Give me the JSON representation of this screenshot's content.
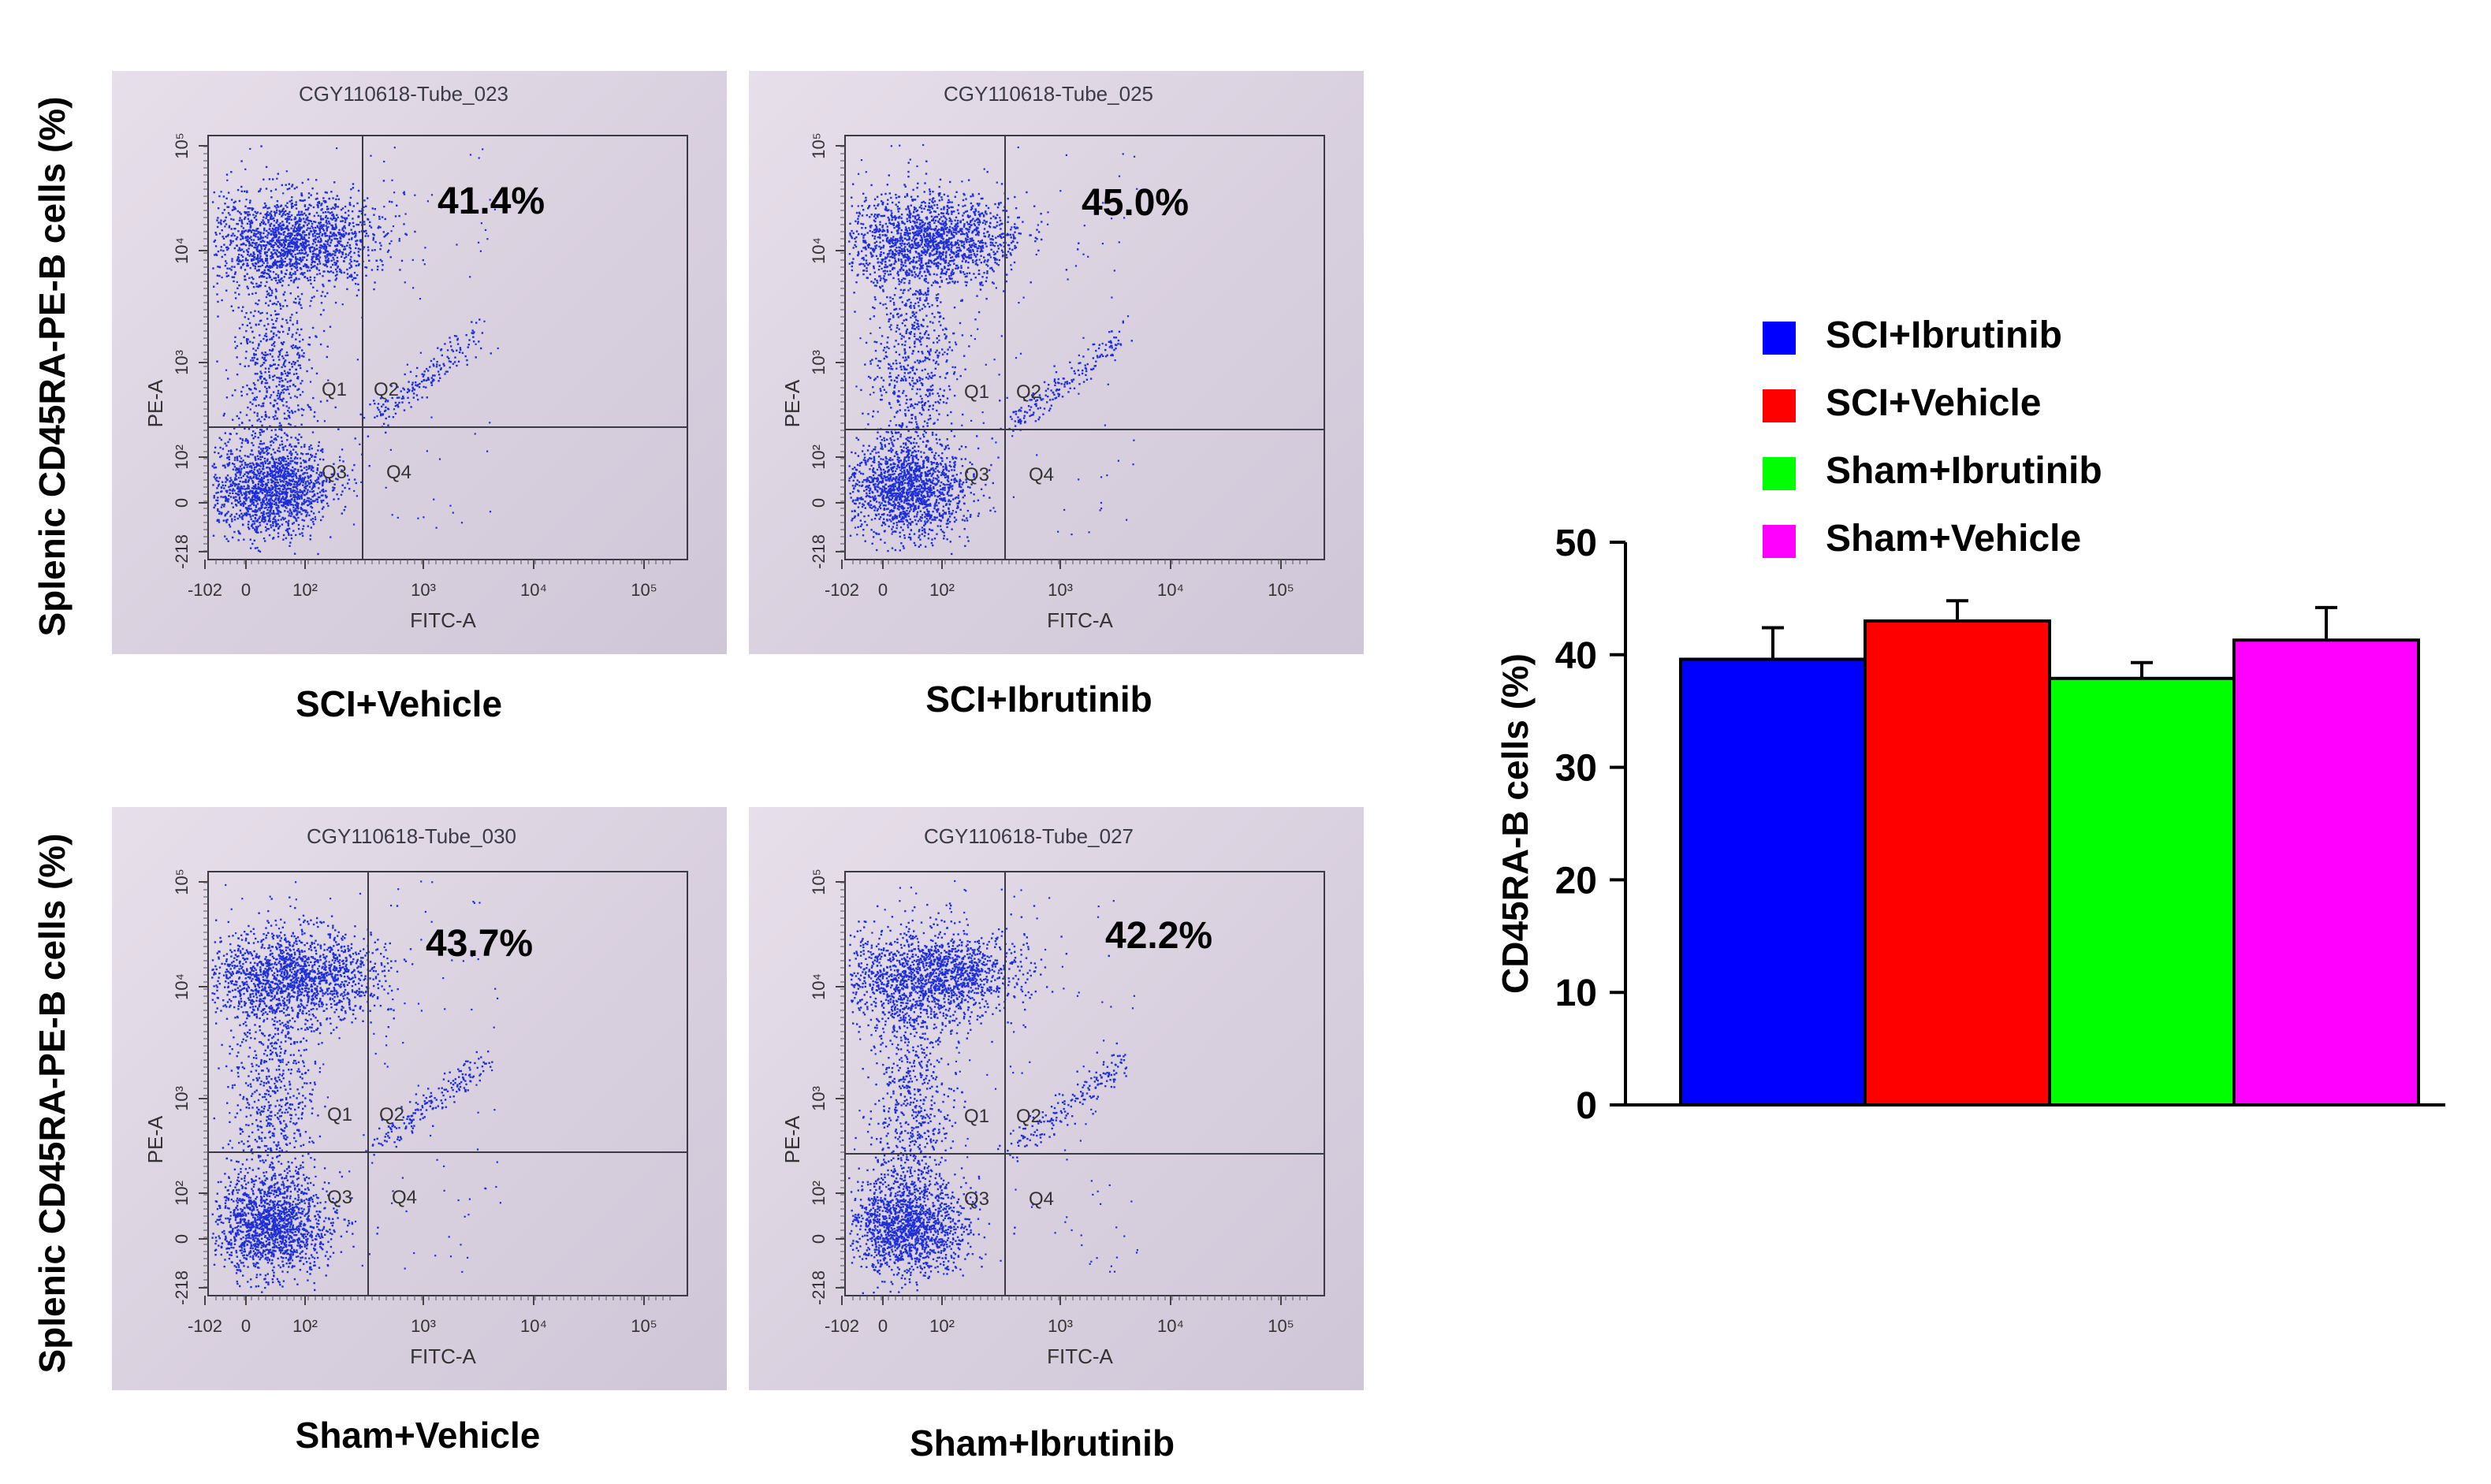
{
  "figure": {
    "flow_y_label_top": "Splenic CD45RA-PE-B cells (%)",
    "flow_y_label_bottom": "Splenic CD45RA-PE-B cells (%)"
  },
  "panels": [
    {
      "title": "CGY110618-Tube_023",
      "caption": "SCI+Vehicle",
      "percent": "41.4%"
    },
    {
      "title": "CGY110618-Tube_025",
      "caption": "SCI+Ibrutinib",
      "percent": "45.0%"
    },
    {
      "title": "CGY110618-Tube_030",
      "caption": "Sham+Vehicle",
      "percent": "43.7%"
    },
    {
      "title": "CGY110618-Tube_027",
      "caption": "Sham+Ibrutinib",
      "percent": "42.2%"
    }
  ],
  "flow_axes": {
    "x_label": "FITC-A",
    "y_label": "PE-A",
    "x_ticks": [
      "-102",
      "0",
      "10²",
      "10³",
      "10⁴",
      "10⁵"
    ],
    "y_ticks": [
      "-218",
      "0",
      "10²",
      "10³",
      "10⁴",
      "10⁵"
    ],
    "quadrants": [
      "Q1",
      "Q2",
      "Q3",
      "Q4"
    ]
  },
  "colors": {
    "dots": "#1f2fd6",
    "panel_bg": "#dcd4e2",
    "gate_line": "#3a3a46"
  },
  "chart_data": {
    "type": "bar",
    "title": "",
    "xlabel": "",
    "ylabel": "CD45RA-B cells (%)",
    "ylim": [
      0,
      50
    ],
    "yticks": [
      0,
      10,
      20,
      30,
      40,
      50
    ],
    "categories": [
      "SCI+Ibrutinib",
      "SCI+Vehicle",
      "Sham+Ibrutinib",
      "Sham+Vehicle"
    ],
    "values": [
      39.6,
      43.0,
      37.9,
      41.3
    ],
    "errors": [
      2.8,
      1.8,
      1.4,
      2.9
    ],
    "colors": [
      "#0000ff",
      "#ff0000",
      "#00ff00",
      "#ff00ff"
    ],
    "legend": [
      "SCI+Ibrutinib",
      "SCI+Vehicle",
      "Sham+Ibrutinib",
      "Sham+Vehicle"
    ],
    "legend_position": "top",
    "grid": false
  }
}
